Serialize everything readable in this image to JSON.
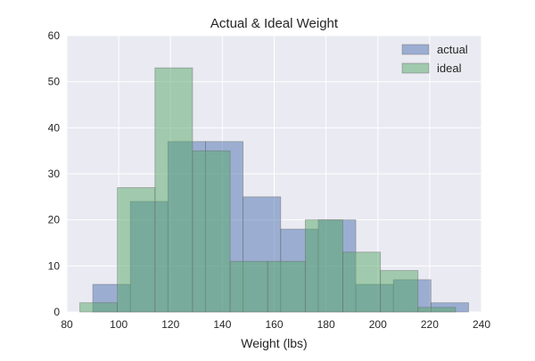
{
  "chart_data": {
    "type": "bar",
    "title": "Actual & Ideal Weight",
    "xlabel": "Weight (lbs)",
    "ylabel": "",
    "xlim": [
      80,
      240
    ],
    "ylim": [
      0,
      60
    ],
    "xticks": [
      80,
      100,
      120,
      140,
      160,
      180,
      200,
      220,
      240
    ],
    "yticks": [
      0,
      10,
      20,
      30,
      40,
      50,
      60
    ],
    "grid": true,
    "legend": "top-right",
    "series": [
      {
        "name": "actual",
        "color": "#4c72b0",
        "bins": [
          {
            "x0": 90,
            "x1": 104.5,
            "count": 6
          },
          {
            "x0": 104.5,
            "x1": 119,
            "count": 24
          },
          {
            "x0": 119,
            "x1": 133.5,
            "count": 37
          },
          {
            "x0": 133.5,
            "x1": 148,
            "count": 37
          },
          {
            "x0": 148,
            "x1": 162.5,
            "count": 25
          },
          {
            "x0": 162.5,
            "x1": 177,
            "count": 18
          },
          {
            "x0": 177,
            "x1": 191.5,
            "count": 20
          },
          {
            "x0": 191.5,
            "x1": 206,
            "count": 6
          },
          {
            "x0": 206,
            "x1": 220.5,
            "count": 7
          },
          {
            "x0": 220.5,
            "x1": 235,
            "count": 2
          }
        ]
      },
      {
        "name": "ideal",
        "color": "#55a868",
        "bins": [
          {
            "x0": 85,
            "x1": 99.5,
            "count": 2
          },
          {
            "x0": 99.5,
            "x1": 114,
            "count": 27
          },
          {
            "x0": 114,
            "x1": 128.5,
            "count": 53
          },
          {
            "x0": 128.5,
            "x1": 143,
            "count": 35
          },
          {
            "x0": 143,
            "x1": 157.5,
            "count": 11
          },
          {
            "x0": 157.5,
            "x1": 172,
            "count": 11
          },
          {
            "x0": 172,
            "x1": 186.5,
            "count": 20
          },
          {
            "x0": 186.5,
            "x1": 201,
            "count": 13
          },
          {
            "x0": 201,
            "x1": 215.5,
            "count": 9
          },
          {
            "x0": 215.5,
            "x1": 230,
            "count": 1
          }
        ]
      }
    ]
  },
  "style": {
    "plot_background": "#eaeaf2",
    "grid_color": "#ffffff",
    "bar_alpha": 0.5,
    "edge_color": "#666666"
  }
}
